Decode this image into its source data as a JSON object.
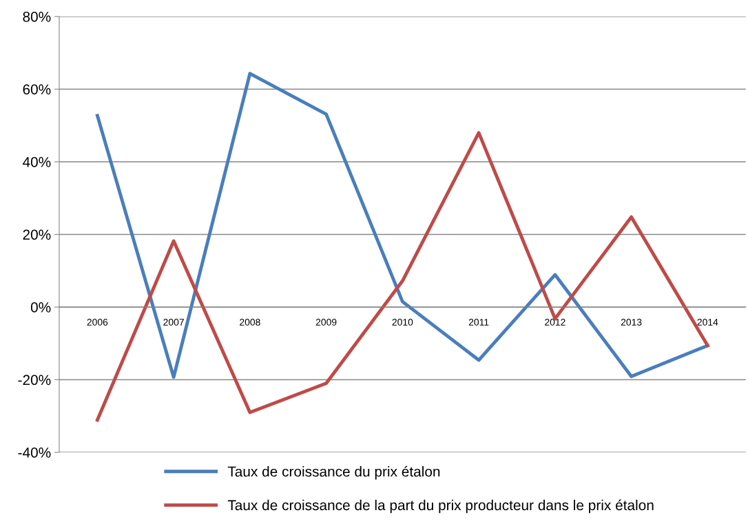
{
  "chart_data": {
    "type": "line",
    "categories": [
      "2006",
      "2007",
      "2008",
      "2009",
      "2010",
      "2011",
      "2012",
      "2013",
      "2014"
    ],
    "series": [
      {
        "name": "Taux de croissance du prix étalon",
        "color": "#4a7ebb",
        "values": [
          52.7,
          -19.3,
          64.3,
          53.1,
          1.5,
          -14.6,
          8.9,
          -19.1,
          -10.6
        ]
      },
      {
        "name": "Taux de croissance de la part du prix producteur dans le prix étalon",
        "color": "#be4b48",
        "values": [
          -31.1,
          18.2,
          -29.0,
          -21.0,
          7.2,
          48.0,
          -3.2,
          24.8,
          -10.6
        ]
      }
    ],
    "ylim": [
      -40,
      80
    ],
    "yticks": [
      {
        "value": -40,
        "label": "-40%"
      },
      {
        "value": -20,
        "label": "-20%"
      },
      {
        "value": 0,
        "label": "0%"
      },
      {
        "value": 20,
        "label": "20%"
      },
      {
        "value": 40,
        "label": "40%"
      },
      {
        "value": 60,
        "label": "60%"
      },
      {
        "value": 80,
        "label": "80%"
      }
    ],
    "grid": "y",
    "legend": "bottom",
    "marker": "none",
    "line_style": "solid"
  }
}
